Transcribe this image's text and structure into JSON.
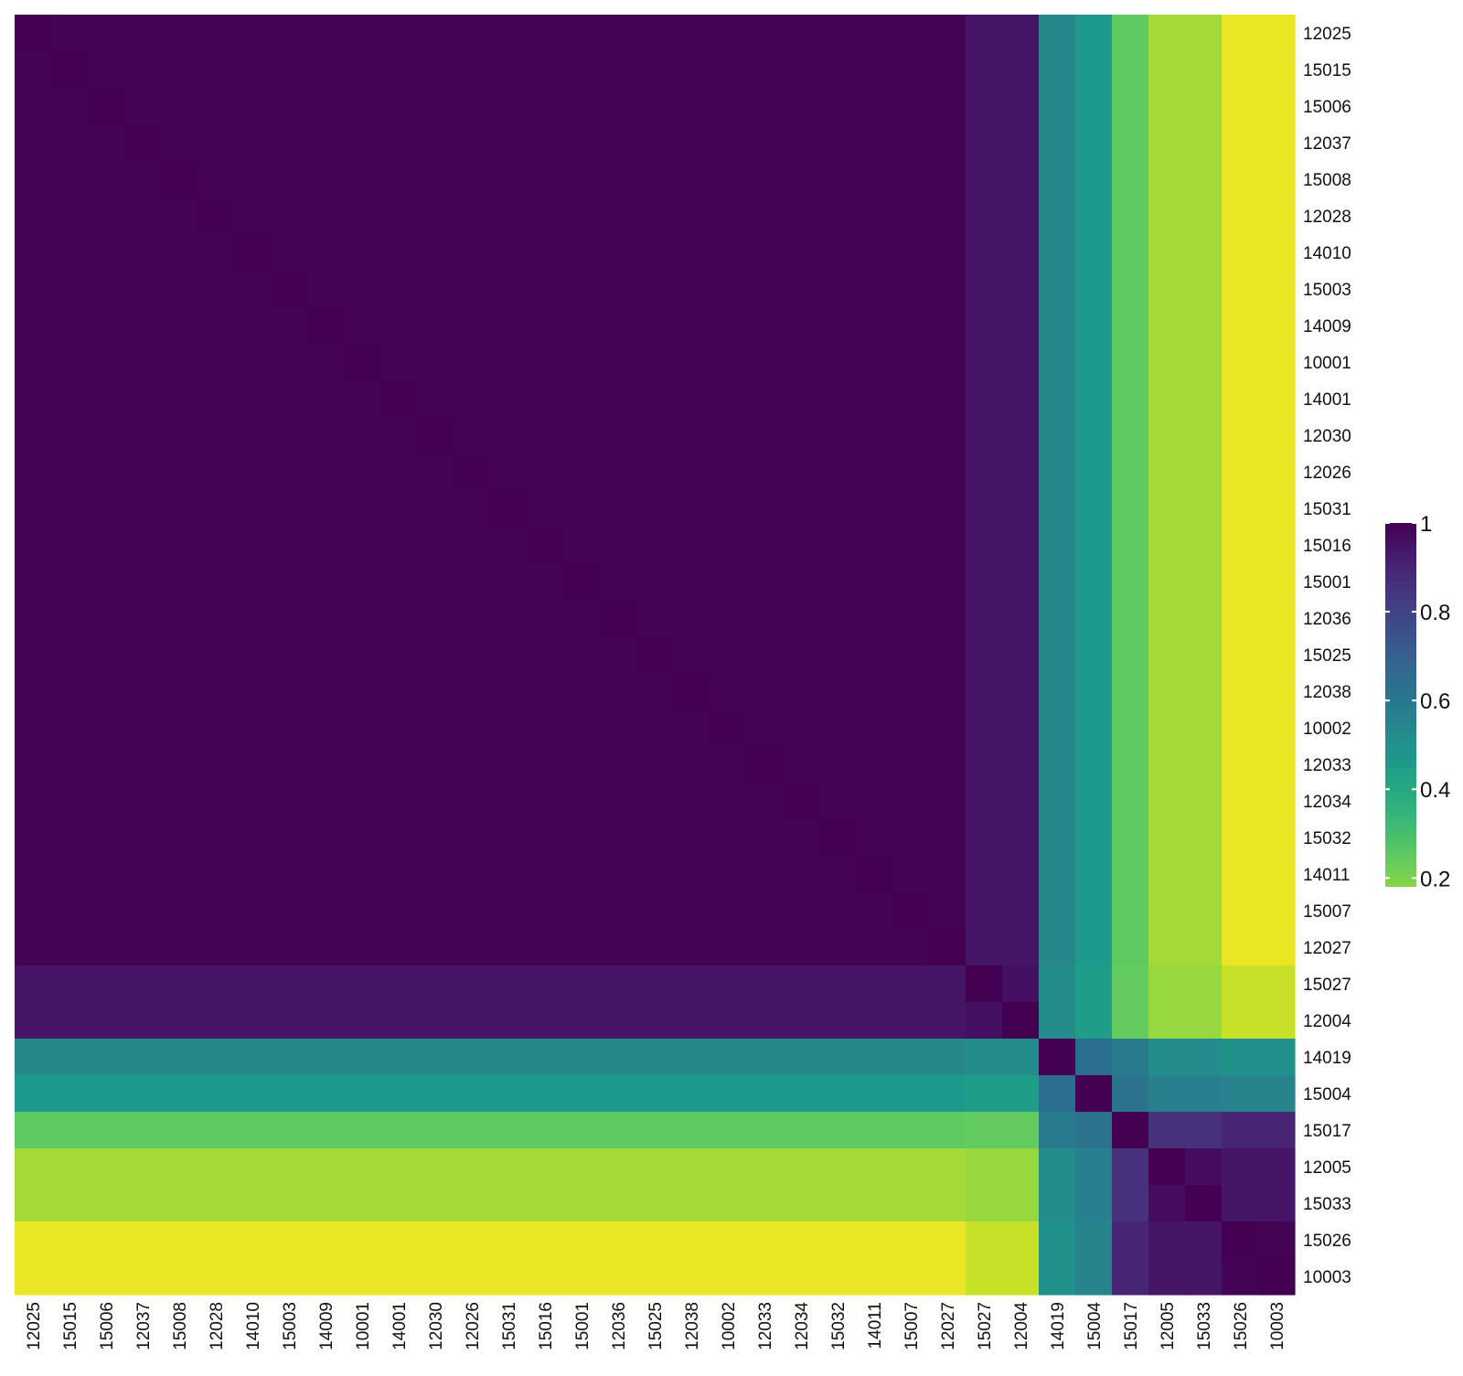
{
  "chart_data": {
    "type": "heatmap",
    "title": "",
    "xlabel": "",
    "ylabel": "",
    "labels": [
      "12025",
      "15015",
      "15006",
      "12037",
      "15008",
      "12028",
      "14010",
      "15003",
      "14009",
      "10001",
      "14001",
      "12030",
      "12026",
      "15031",
      "15016",
      "15001",
      "12036",
      "15025",
      "12038",
      "10002",
      "12033",
      "12034",
      "15032",
      "14011",
      "15007",
      "12027",
      "15027",
      "12004",
      "14019",
      "15004",
      "15017",
      "12005",
      "15033",
      "15026",
      "10003"
    ],
    "group_of_label": [
      0,
      0,
      0,
      0,
      0,
      0,
      0,
      0,
      0,
      0,
      0,
      0,
      0,
      0,
      0,
      0,
      0,
      0,
      0,
      0,
      0,
      0,
      0,
      0,
      0,
      0,
      1,
      1,
      2,
      3,
      4,
      5,
      5,
      6,
      6
    ],
    "block_values": [
      [
        0.99,
        0.94,
        0.53,
        0.46,
        0.25,
        0.14,
        0.03
      ],
      [
        0.94,
        0.96,
        0.52,
        0.45,
        0.24,
        0.16,
        0.08
      ],
      [
        0.53,
        0.52,
        1.0,
        0.64,
        0.58,
        0.52,
        0.49
      ],
      [
        0.46,
        0.45,
        0.64,
        1.0,
        0.62,
        0.57,
        0.55
      ],
      [
        0.25,
        0.24,
        0.58,
        0.62,
        1.0,
        0.86,
        0.9
      ],
      [
        0.14,
        0.16,
        0.52,
        0.57,
        0.86,
        0.97,
        0.94
      ],
      [
        0.03,
        0.08,
        0.49,
        0.55,
        0.9,
        0.94,
        0.99
      ]
    ],
    "diagonal_value": 1.0,
    "color_scale": {
      "name": "viridis (reversed)",
      "range": [
        0,
        1
      ],
      "colors_low_to_high": [
        "#fde725",
        "#b5de2b",
        "#6ece58",
        "#35b779",
        "#1f9e89",
        "#26828e",
        "#31688e",
        "#3e4989",
        "#482878",
        "#440154"
      ]
    },
    "legend": {
      "position": "right",
      "ticks": [
        "0.2",
        "0.4",
        "0.6",
        "0.8",
        "1"
      ],
      "tick_values": [
        0.2,
        0.4,
        0.6,
        0.8,
        1.0
      ],
      "range": [
        0.18,
        1.0
      ]
    },
    "grid": false
  }
}
